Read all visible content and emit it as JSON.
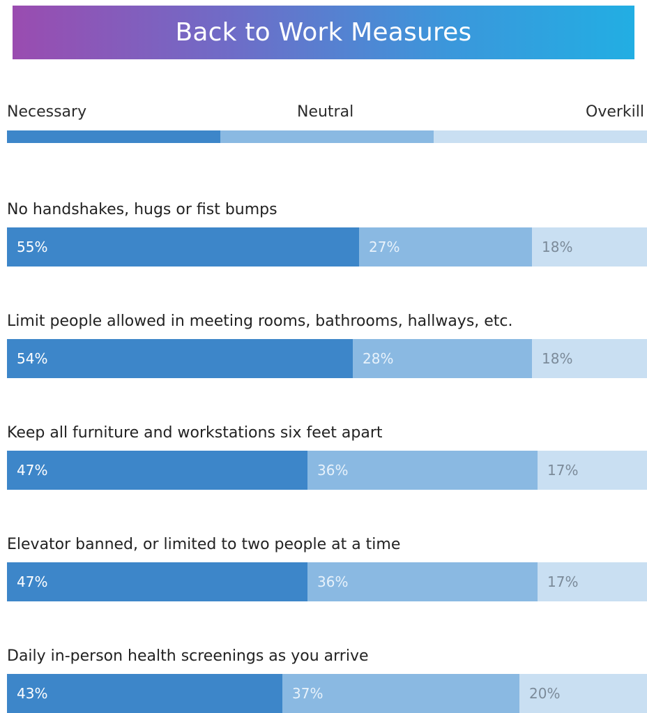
{
  "header": {
    "title": "Back to Work Measures"
  },
  "legend": {
    "necessary": "Necessary",
    "neutral": "Neutral",
    "overkill": "Overkill"
  },
  "colors": {
    "necessary": "#3d86c9",
    "neutral": "#8ab9e2",
    "overkill": "#c9dff2"
  },
  "chart_data": {
    "type": "bar",
    "stacked": true,
    "orientation": "horizontal",
    "title": "Back to Work Measures",
    "series_names": [
      "Necessary",
      "Neutral",
      "Overkill"
    ],
    "categories": [
      "No handshakes, hugs or fist bumps",
      "Limit people allowed in meeting rooms, bathrooms, hallways, etc.",
      "Keep all furniture and workstations six feet apart",
      "Elevator banned, or limited to two people at a time",
      "Daily in-person health screenings as you arrive"
    ],
    "series": [
      {
        "name": "Necessary",
        "values": [
          55,
          54,
          47,
          47,
          43
        ]
      },
      {
        "name": "Neutral",
        "values": [
          27,
          28,
          36,
          36,
          37
        ]
      },
      {
        "name": "Overkill",
        "values": [
          18,
          18,
          17,
          17,
          20
        ]
      }
    ],
    "data_labels": [
      [
        "55%",
        "27%",
        "18%"
      ],
      [
        "54%",
        "28%",
        "18%"
      ],
      [
        "47%",
        "36%",
        "17%"
      ],
      [
        "47%",
        "36%",
        "17%"
      ],
      [
        "43%",
        "37%",
        "20%"
      ]
    ]
  }
}
